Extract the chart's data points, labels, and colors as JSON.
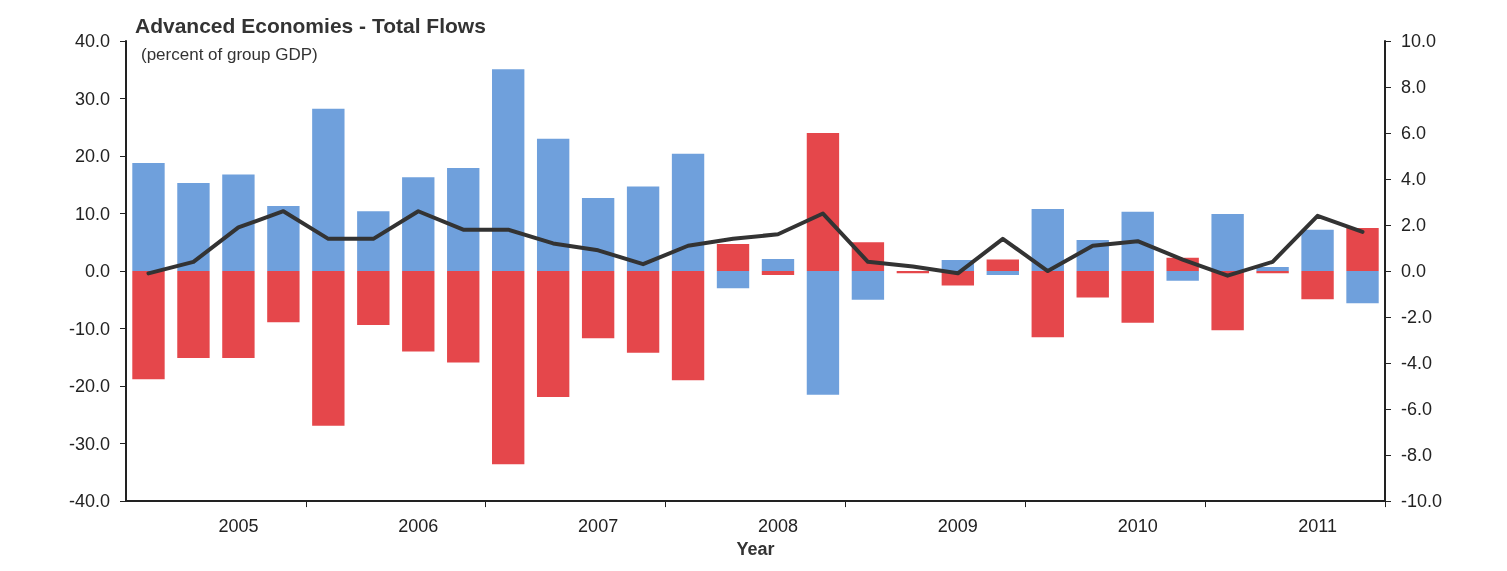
{
  "chart_data": {
    "type": "bar",
    "title": "Advanced Economies - Total Flows",
    "subtitle": "(percent of group GDP)",
    "xlabel": "Year",
    "categories": [
      null,
      null,
      "2005",
      null,
      null,
      null,
      "2006",
      null,
      null,
      null,
      "2007",
      null,
      null,
      null,
      "2008",
      null,
      null,
      null,
      "2009",
      null,
      null,
      null,
      "2010",
      null,
      null,
      null,
      "2011",
      null
    ],
    "stacked": true,
    "grid": false,
    "marker": "none",
    "line_style": "solid",
    "series": [
      {
        "color": "#6fa0dc",
        "values": [
          18.8,
          15.3,
          16.8,
          11.3,
          28.2,
          10.4,
          16.3,
          17.9,
          35.1,
          23.0,
          12.7,
          14.7,
          20.4,
          -3.0,
          2.1,
          -21.5,
          -5.0,
          0,
          1.9,
          -0.7,
          10.8,
          5.4,
          10.3,
          -1.7,
          9.9,
          0.7,
          7.2,
          -5.6
        ]
      },
      {
        "color": "#e5474b",
        "values": [
          -18.8,
          -15.1,
          -15.1,
          -8.9,
          -26.9,
          -9.4,
          -14.0,
          -15.9,
          -33.6,
          -21.9,
          -11.7,
          -14.2,
          -19.0,
          4.7,
          -0.7,
          24.0,
          5.0,
          -0.4,
          -2.5,
          2.0,
          -11.5,
          -4.6,
          -9.0,
          2.3,
          -10.3,
          -0.4,
          -4.9,
          7.5
        ]
      },
      {
        "type": "line",
        "axis": "y2",
        "color": "#333333",
        "values": [
          -0.1,
          0.4,
          1.9,
          2.6,
          1.4,
          1.4,
          2.6,
          1.8,
          1.8,
          1.2,
          0.9,
          0.3,
          1.1,
          1.4,
          1.6,
          2.5,
          0.4,
          0.2,
          -0.1,
          1.4,
          0.0,
          1.1,
          1.3,
          0.5,
          -0.2,
          0.4,
          2.4,
          1.7
        ]
      }
    ],
    "ylim": [
      -40,
      40
    ],
    "yticks": [
      {
        "value": -40,
        "label": "-40.0"
      },
      {
        "value": -30,
        "label": "-30.0"
      },
      {
        "value": -20,
        "label": "-20.0"
      },
      {
        "value": -10,
        "label": "-10.0"
      },
      {
        "value": 0,
        "label": "0.0"
      },
      {
        "value": 10,
        "label": "10.0"
      },
      {
        "value": 20,
        "label": "20.0"
      },
      {
        "value": 30,
        "label": "30.0"
      },
      {
        "value": 40,
        "label": "40.0"
      }
    ],
    "y2lim": [
      -10,
      10
    ],
    "y2ticks": [
      {
        "value": -10,
        "label": "-10.0"
      },
      {
        "value": -8,
        "label": "-8.0"
      },
      {
        "value": -6,
        "label": "-6.0"
      },
      {
        "value": -4,
        "label": "-4.0"
      },
      {
        "value": -2,
        "label": "-2.0"
      },
      {
        "value": 0,
        "label": "0.0"
      },
      {
        "value": 2,
        "label": "2.0"
      },
      {
        "value": 4,
        "label": "4.0"
      },
      {
        "value": 6,
        "label": "6.0"
      },
      {
        "value": 8,
        "label": "8.0"
      },
      {
        "value": 10,
        "label": "10.0"
      }
    ]
  }
}
